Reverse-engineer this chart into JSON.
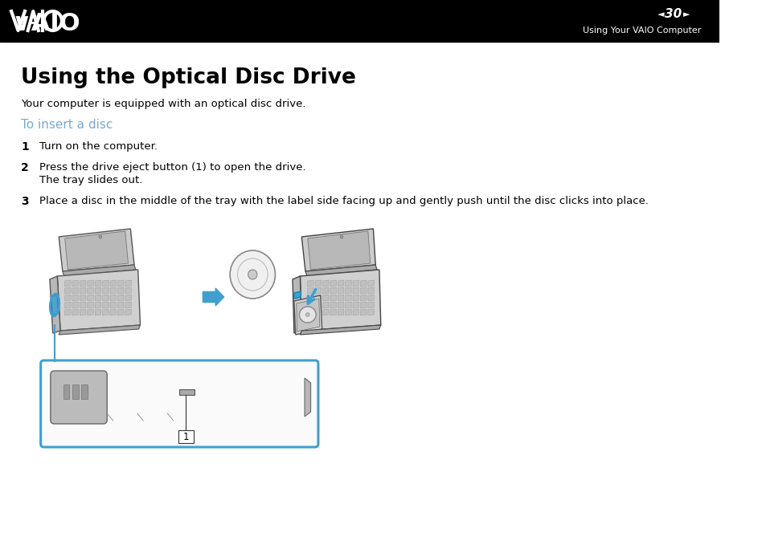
{
  "bg_color": "#ffffff",
  "header_bg": "#000000",
  "header_text_color": "#ffffff",
  "header_page_num": "30",
  "header_section": "Using Your VAIO Computer",
  "main_title": "Using the Optical Disc Drive",
  "subtitle": "Your computer is equipped with an optical disc drive.",
  "section_heading": "To insert a disc",
  "section_heading_color": "#7aabcc",
  "step1_num": "1",
  "step1_text": "Turn on the computer.",
  "step2_num": "2",
  "step2_line1": "Press the drive eject button (1) to open the drive.",
  "step2_line2": "The tray slides out.",
  "step3_num": "3",
  "step3_text": "Place a disc in the middle of the tray with the label side facing up and gently push until the disc clicks into place.",
  "arrow_color": "#3fa0d0",
  "callout_border_color": "#3fa0d0",
  "text_color": "#000000",
  "light_gray": "#e0e0e0",
  "mid_gray": "#c0c0c0",
  "dark_gray": "#444444",
  "laptop_body": "#d8d8d8",
  "laptop_screen_bg": "#c8c8c8",
  "laptop_edge": "#555555"
}
